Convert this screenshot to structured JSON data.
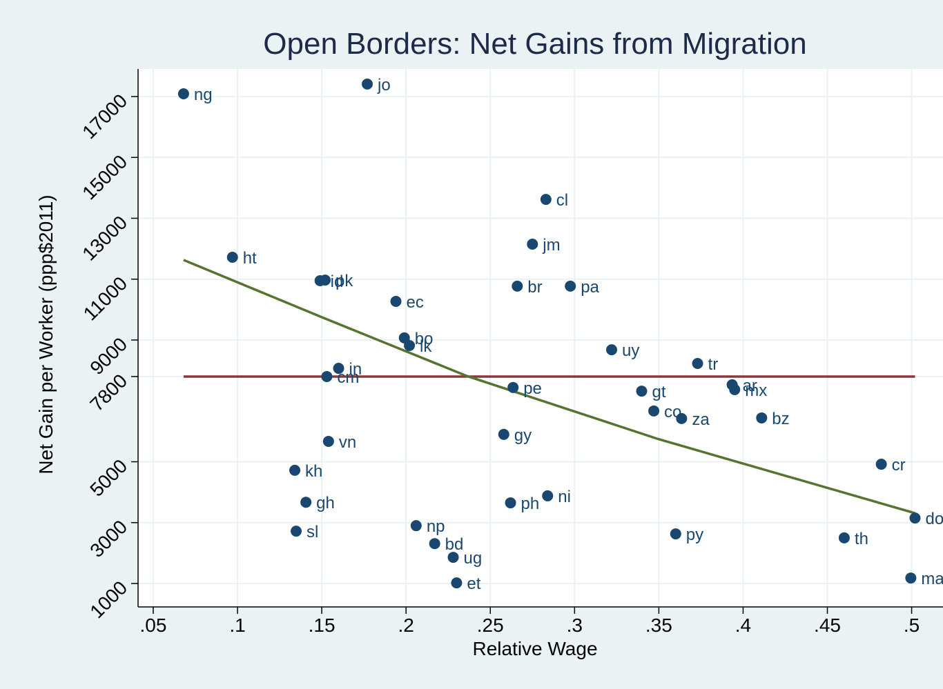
{
  "chart_data": {
    "type": "scatter",
    "title": "Open Borders: Net Gains from Migration",
    "xlabel": "Relative Wage",
    "ylabel": "Net Gain per Worker (ppp$2011)",
    "xlim": [
      0.041,
      0.51
    ],
    "ylim": [
      230,
      17906
    ],
    "xticks": [
      {
        "value": 0.05,
        "label": ".05"
      },
      {
        "value": 0.1,
        "label": ".1"
      },
      {
        "value": 0.15,
        "label": ".15"
      },
      {
        "value": 0.2,
        "label": ".2"
      },
      {
        "value": 0.25,
        "label": ".25"
      },
      {
        "value": 0.3,
        "label": ".3"
      },
      {
        "value": 0.35,
        "label": ".35"
      },
      {
        "value": 0.4,
        "label": ".4"
      },
      {
        "value": 0.45,
        "label": ".45"
      },
      {
        "value": 0.5,
        "label": ".5"
      }
    ],
    "yticks": [
      1000,
      3000,
      5000,
      7800,
      9000,
      11000,
      13000,
      15000,
      17000
    ],
    "grid": true,
    "series": [
      {
        "mode": "markers",
        "color": "#1a476f",
        "labels": [
          "ng",
          "jo",
          "cl",
          "jm",
          "ht",
          "id",
          "pk",
          "br",
          "pa",
          "ec",
          "bo",
          "lk",
          "uy",
          "tr",
          "in",
          "cm",
          "ar",
          "mx",
          "pe",
          "gt",
          "co",
          "za",
          "bz",
          "gy",
          "vn",
          "cr",
          "kh",
          "gh",
          "ni",
          "ph",
          "np",
          "sl",
          "py",
          "th",
          "bd",
          "ug",
          "et",
          "do",
          "ma"
        ],
        "x": [
          0.068,
          0.177,
          0.283,
          0.275,
          0.097,
          0.149,
          0.152,
          0.266,
          0.2975,
          0.194,
          0.199,
          0.202,
          0.322,
          0.373,
          0.16,
          0.153,
          0.3935,
          0.395,
          0.2635,
          0.3398,
          0.347,
          0.3635,
          0.411,
          0.258,
          0.154,
          0.482,
          0.134,
          0.1406,
          0.284,
          0.262,
          0.206,
          0.1348,
          0.36,
          0.46,
          0.217,
          0.228,
          0.23,
          0.502,
          0.4995
        ],
        "values": [
          17090,
          17410,
          13620,
          12150,
          11720,
          10950,
          10970,
          10770,
          10770,
          10270,
          9070,
          8820,
          8680,
          8230,
          8070,
          7800,
          7530,
          7370,
          7440,
          7320,
          6670,
          6420,
          6440,
          5900,
          5670,
          4920,
          4720,
          3670,
          3880,
          3650,
          2900,
          2720,
          2630,
          2500,
          2310,
          1860,
          1020,
          3150,
          1180
        ]
      },
      {
        "mode": "line",
        "color": "#90353b",
        "x": [
          0.068,
          0.502
        ],
        "values": [
          7800,
          7800
        ]
      },
      {
        "mode": "line",
        "color": "#55752f",
        "x": [
          0.068,
          0.15,
          0.236,
          0.35,
          0.502
        ],
        "values": [
          11630,
          9750,
          7820,
          5740,
          3310
        ]
      }
    ]
  }
}
